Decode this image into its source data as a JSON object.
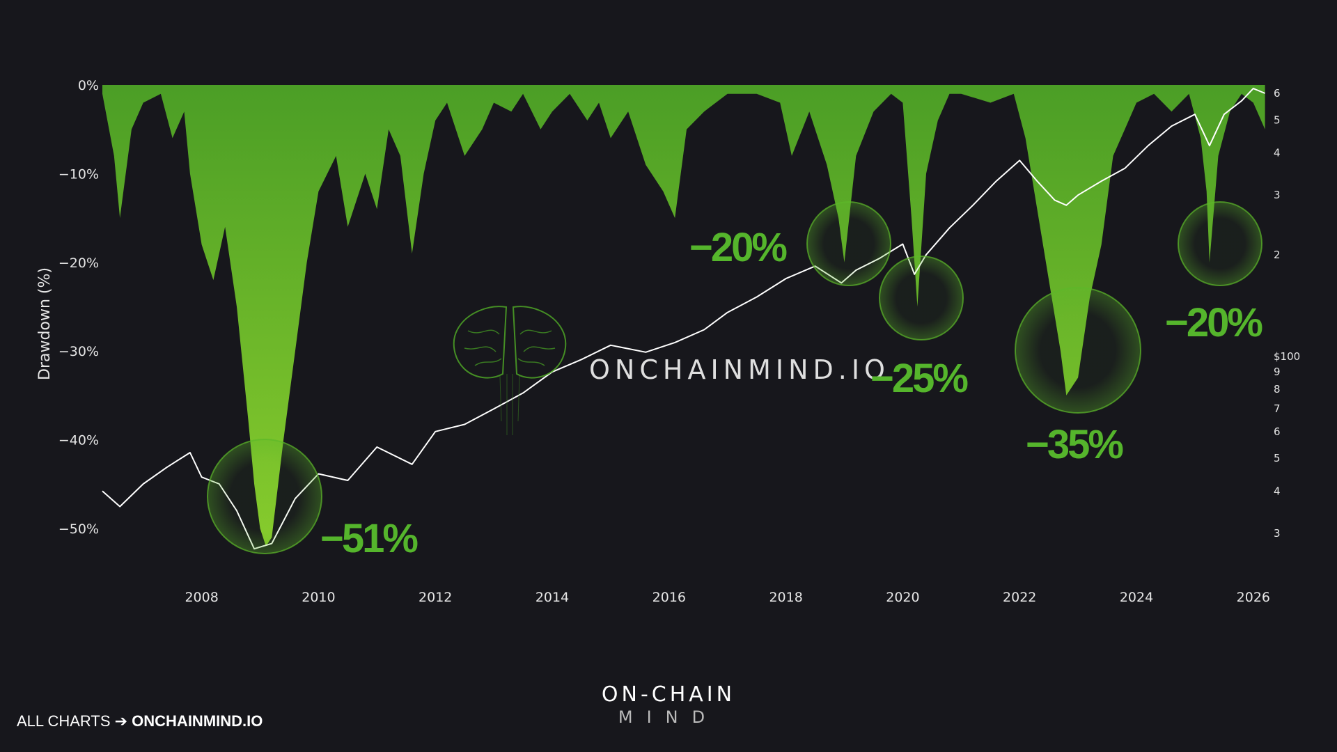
{
  "chart_data": {
    "type": "area",
    "ylabel": "Drawdown (%)",
    "y_ticks": [
      "0%",
      "−10%",
      "−20%",
      "−30%",
      "−40%",
      "−50%"
    ],
    "y_tick_values": [
      0,
      -10,
      -20,
      -30,
      -40,
      -50
    ],
    "ylim": [
      -56,
      0
    ],
    "x_ticks": [
      "2008",
      "2010",
      "2012",
      "2014",
      "2016",
      "2018",
      "2020",
      "2022",
      "2024",
      "2026"
    ],
    "x_tick_values": [
      2008,
      2010,
      2012,
      2014,
      2016,
      2018,
      2020,
      2022,
      2024,
      2026
    ],
    "xlim": [
      2006.3,
      2026.3
    ],
    "right_axis": {
      "scale": "log",
      "ticks": [
        "6",
        "5",
        "4",
        "3",
        "2",
        "$100",
        "9",
        "8",
        "7",
        "6",
        "5",
        "4",
        "3"
      ],
      "tick_values": [
        600,
        500,
        400,
        300,
        200,
        100,
        90,
        80,
        70,
        60,
        50,
        40,
        30
      ]
    },
    "series": [
      {
        "type": "area",
        "color": "#5cb82a",
        "values_x": [
          2006.3,
          2006.5,
          2006.6,
          2006.8,
          2007.0,
          2007.3,
          2007.5,
          2007.7,
          2007.8,
          2008.0,
          2008.2,
          2008.4,
          2008.6,
          2008.8,
          2008.9,
          2009.0,
          2009.1,
          2009.2,
          2009.4,
          2009.6,
          2009.8,
          2010.0,
          2010.3,
          2010.5,
          2010.8,
          2011.0,
          2011.2,
          2011.4,
          2011.6,
          2011.8,
          2012.0,
          2012.2,
          2012.5,
          2012.8,
          2013.0,
          2013.3,
          2013.5,
          2013.8,
          2014.0,
          2014.3,
          2014.6,
          2014.8,
          2015.0,
          2015.3,
          2015.6,
          2015.9,
          2016.1,
          2016.3,
          2016.6,
          2017.0,
          2017.5,
          2017.9,
          2018.1,
          2018.4,
          2018.7,
          2018.9,
          2019.0,
          2019.2,
          2019.5,
          2019.8,
          2020.0,
          2020.15,
          2020.25,
          2020.4,
          2020.6,
          2020.8,
          2021.0,
          2021.5,
          2021.9,
          2022.1,
          2022.3,
          2022.5,
          2022.7,
          2022.8,
          2023.0,
          2023.2,
          2023.4,
          2023.6,
          2023.8,
          2024.0,
          2024.3,
          2024.6,
          2024.9,
          2025.1,
          2025.2,
          2025.25,
          2025.4,
          2025.6,
          2025.8,
          2026.0,
          2026.2
        ],
        "values_y": [
          -1,
          -8,
          -15,
          -5,
          -2,
          -1,
          -6,
          -3,
          -10,
          -18,
          -22,
          -16,
          -25,
          -38,
          -45,
          -50,
          -52,
          -51,
          -40,
          -30,
          -20,
          -12,
          -8,
          -16,
          -10,
          -14,
          -5,
          -8,
          -19,
          -10,
          -4,
          -2,
          -8,
          -5,
          -2,
          -3,
          -1,
          -5,
          -3,
          -1,
          -4,
          -2,
          -6,
          -3,
          -9,
          -12,
          -15,
          -5,
          -3,
          -1,
          -1,
          -2,
          -8,
          -3,
          -9,
          -15,
          -20,
          -8,
          -3,
          -1,
          -2,
          -15,
          -25,
          -10,
          -4,
          -1,
          -1,
          -2,
          -1,
          -6,
          -14,
          -22,
          -30,
          -35,
          -33,
          -24,
          -18,
          -8,
          -5,
          -2,
          -1,
          -3,
          -1,
          -6,
          -12,
          -20,
          -8,
          -3,
          -1,
          -2,
          -5
        ]
      },
      {
        "type": "line",
        "color": "#ffffff",
        "values_x": [
          2006.3,
          2006.6,
          2007.0,
          2007.4,
          2007.8,
          2008.0,
          2008.3,
          2008.6,
          2008.9,
          2009.2,
          2009.6,
          2010.0,
          2010.5,
          2011.0,
          2011.6,
          2012.0,
          2012.5,
          2013.0,
          2013.5,
          2014.0,
          2014.5,
          2015.0,
          2015.6,
          2016.1,
          2016.6,
          2017.0,
          2017.5,
          2018.0,
          2018.5,
          2018.95,
          2019.2,
          2019.6,
          2020.0,
          2020.2,
          2020.4,
          2020.8,
          2021.2,
          2021.6,
          2022.0,
          2022.3,
          2022.6,
          2022.8,
          2023.0,
          2023.4,
          2023.8,
          2024.2,
          2024.6,
          2025.0,
          2025.25,
          2025.5,
          2025.8,
          2026.0,
          2026.2
        ],
        "values_y": [
          40,
          36,
          42,
          47,
          52,
          44,
          42,
          35,
          27,
          28,
          38,
          45,
          43,
          54,
          48,
          60,
          63,
          70,
          78,
          90,
          98,
          108,
          103,
          110,
          120,
          135,
          150,
          170,
          185,
          165,
          180,
          195,
          215,
          175,
          200,
          240,
          280,
          330,
          380,
          330,
          290,
          280,
          300,
          330,
          360,
          420,
          480,
          520,
          420,
          520,
          570,
          620,
          600
        ]
      }
    ],
    "annotations": [
      "−51%",
      "−20%",
      "−25%",
      "−35%",
      "−20%"
    ],
    "watermark": "ONCHAINMIND.IO",
    "grid": false
  },
  "footer": {
    "prefix": "ALL CHARTS ➔ ",
    "site": "ONCHAINMIND.IO"
  },
  "logo": {
    "line1": "ON-CHAIN",
    "line2": "MIND"
  }
}
